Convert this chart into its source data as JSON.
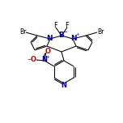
{
  "bg_color": "#ffffff",
  "line_color": "#000000",
  "atom_colors": {
    "N": "#0000cc",
    "B": "#0000cc",
    "Br": "#000000",
    "F": "#000000",
    "O": "#cc0000",
    "default": "#000000"
  },
  "figsize": [
    1.52,
    1.52
  ],
  "dpi": 100,
  "lw": 0.75
}
